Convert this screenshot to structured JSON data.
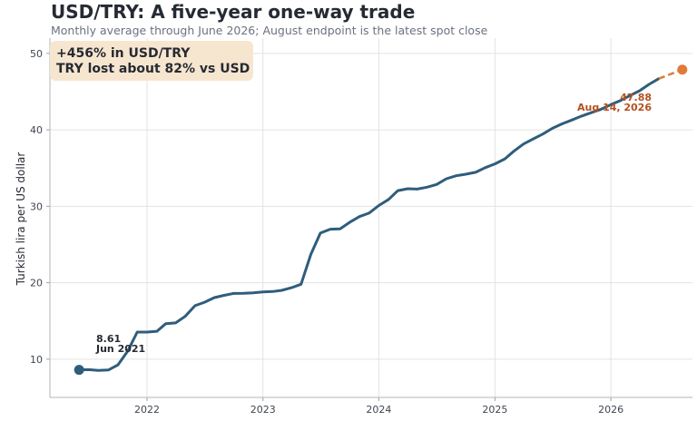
{
  "title": "USD/TRY: A five-year one-way trade",
  "subtitle": "Monthly average through June 2026; August endpoint is the latest spot close",
  "colors": {
    "line": "#2f5d7c",
    "spot": "#e07b39",
    "end_label": "#b4501f",
    "callout_bg": "#f7e6cf",
    "grid": "#e3e3e3"
  },
  "callout": {
    "line1": "+456% in USD/TRY",
    "line2": "TRY lost about 82% vs USD"
  },
  "start_annotation": {
    "value": "8.61",
    "date": "Jun 2021"
  },
  "end_annotation": {
    "value": "47.88",
    "date": "Aug 14, 2026"
  },
  "chart_data": {
    "type": "line",
    "title": "USD/TRY: A five-year one-way trade",
    "xlabel": "",
    "ylabel": "Turkish lira per US dollar",
    "x_ticks": [
      "2022",
      "2023",
      "2024",
      "2025",
      "2026"
    ],
    "y_ticks": [
      10,
      20,
      30,
      40,
      50
    ],
    "xlim": [
      "2021-03-01",
      "2026-09-15"
    ],
    "ylim": [
      5,
      52
    ],
    "grid": "horizontal",
    "series": [
      {
        "x": [
          "2021-06",
          "2021-07",
          "2021-08",
          "2021-09",
          "2021-10",
          "2021-11",
          "2021-12",
          "2022-01",
          "2022-02",
          "2022-03",
          "2022-04",
          "2022-05",
          "2022-06",
          "2022-07",
          "2022-08",
          "2022-09",
          "2022-10",
          "2022-11",
          "2022-12",
          "2023-01",
          "2023-02",
          "2023-03",
          "2023-04",
          "2023-05",
          "2023-06",
          "2023-07",
          "2023-08",
          "2023-09",
          "2023-10",
          "2023-11",
          "2023-12",
          "2024-01",
          "2024-02",
          "2024-03",
          "2024-04",
          "2024-05",
          "2024-06",
          "2024-07",
          "2024-08",
          "2024-09",
          "2024-10",
          "2024-11",
          "2024-12",
          "2025-01",
          "2025-02",
          "2025-03",
          "2025-04",
          "2025-05",
          "2025-06",
          "2025-07",
          "2025-08",
          "2025-09",
          "2025-10",
          "2025-11",
          "2025-12",
          "2026-01",
          "2026-02",
          "2026-03",
          "2026-04",
          "2026-05",
          "2026-06"
        ],
        "values": [
          8.61,
          8.63,
          8.52,
          8.58,
          9.25,
          11.05,
          13.55,
          13.55,
          13.65,
          14.65,
          14.75,
          15.6,
          17.0,
          17.45,
          18.05,
          18.35,
          18.6,
          18.62,
          18.68,
          18.8,
          18.85,
          19.0,
          19.35,
          19.8,
          23.7,
          26.5,
          27.0,
          27.05,
          27.9,
          28.65,
          29.1,
          30.1,
          30.9,
          32.05,
          32.3,
          32.25,
          32.5,
          32.85,
          33.6,
          34.0,
          34.2,
          34.45,
          35.05,
          35.55,
          36.2,
          37.2,
          38.15,
          38.8,
          39.45,
          40.2,
          40.8,
          41.3,
          41.8,
          42.25,
          42.7,
          43.3,
          43.85,
          44.45,
          45.1,
          45.95,
          46.7
        ]
      },
      {
        "x": [
          "2026-06",
          "2026-08-14"
        ],
        "values": [
          46.7,
          47.88
        ]
      }
    ]
  }
}
